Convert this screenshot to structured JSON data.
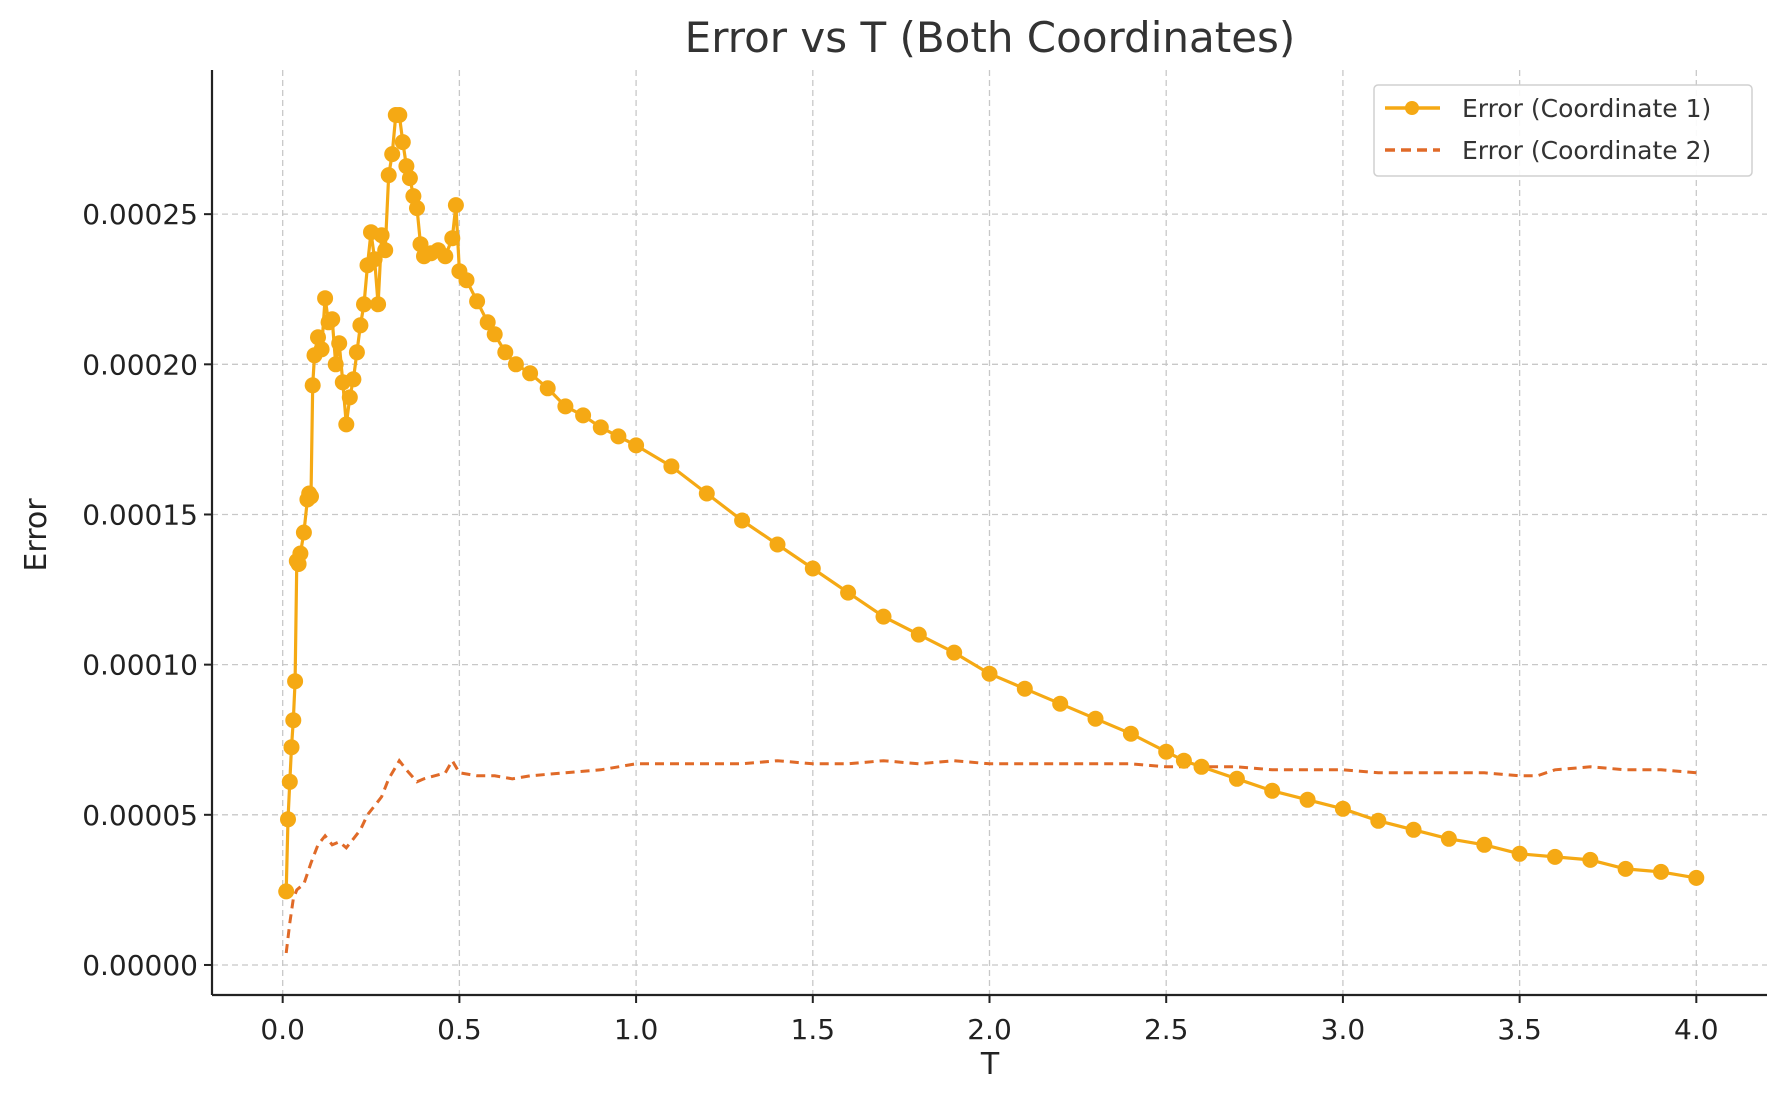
{
  "chart_data": {
    "type": "line",
    "title": "Error vs T (Both Coordinates)",
    "xlabel": "T",
    "ylabel": "Error",
    "xlim": [
      -0.2,
      4.2
    ],
    "ylim": [
      -1e-05,
      0.000298
    ],
    "x_ticks": [
      0.0,
      0.5,
      1.0,
      1.5,
      2.0,
      2.5,
      3.0,
      3.5,
      4.0
    ],
    "x_tick_labels": [
      "0.0",
      "0.5",
      "1.0",
      "1.5",
      "2.0",
      "2.5",
      "3.0",
      "3.5",
      "4.0"
    ],
    "y_ticks": [
      0.0,
      5e-05,
      0.0001,
      0.00015,
      0.0002,
      0.00025
    ],
    "y_tick_labels": [
      "0.00000",
      "0.00005",
      "0.00010",
      "0.00015",
      "0.00020",
      "0.00025"
    ],
    "grid": true,
    "legend_position": "top-right",
    "series": [
      {
        "name": "Error (Coordinate 1)",
        "color": "#F5A914",
        "style": "solid-markers",
        "x": [
          0.01,
          0.015,
          0.02,
          0.025,
          0.03,
          0.035,
          0.04,
          0.045,
          0.05,
          0.06,
          0.07,
          0.075,
          0.08,
          0.085,
          0.09,
          0.1,
          0.11,
          0.12,
          0.13,
          0.14,
          0.15,
          0.16,
          0.17,
          0.18,
          0.19,
          0.2,
          0.21,
          0.22,
          0.23,
          0.24,
          0.25,
          0.26,
          0.27,
          0.28,
          0.29,
          0.3,
          0.31,
          0.32,
          0.33,
          0.34,
          0.35,
          0.36,
          0.37,
          0.38,
          0.39,
          0.4,
          0.42,
          0.44,
          0.46,
          0.48,
          0.49,
          0.5,
          0.52,
          0.55,
          0.58,
          0.6,
          0.63,
          0.66,
          0.7,
          0.75,
          0.8,
          0.85,
          0.9,
          0.95,
          1.0,
          1.1,
          1.2,
          1.3,
          1.4,
          1.5,
          1.6,
          1.7,
          1.8,
          1.9,
          2.0,
          2.1,
          2.2,
          2.3,
          2.4,
          2.5,
          2.55,
          2.6,
          2.7,
          2.8,
          2.9,
          3.0,
          3.1,
          3.2,
          3.3,
          3.4,
          3.5,
          3.6,
          3.7,
          3.8,
          3.9,
          4.0
        ],
        "y": [
          2.45e-05,
          4.85e-05,
          6.1e-05,
          7.25e-05,
          8.15e-05,
          9.45e-05,
          0.0001345,
          0.0001335,
          0.000137,
          0.000144,
          0.000155,
          0.000157,
          0.000156,
          0.000193,
          0.000203,
          0.000209,
          0.000205,
          0.000222,
          0.000214,
          0.000215,
          0.0002,
          0.000207,
          0.000194,
          0.00018,
          0.000189,
          0.000195,
          0.000204,
          0.000213,
          0.00022,
          0.000233,
          0.000244,
          0.000235,
          0.00022,
          0.000243,
          0.000238,
          0.000263,
          0.00027,
          0.000283,
          0.000283,
          0.000274,
          0.000266,
          0.000262,
          0.000256,
          0.000252,
          0.00024,
          0.000236,
          0.000237,
          0.000238,
          0.000236,
          0.000242,
          0.000253,
          0.000231,
          0.000228,
          0.000221,
          0.000214,
          0.00021,
          0.000204,
          0.0002,
          0.000197,
          0.000192,
          0.000186,
          0.000183,
          0.000179,
          0.000176,
          0.000173,
          0.000166,
          0.000157,
          0.000148,
          0.00014,
          0.000132,
          0.000124,
          0.000116,
          0.00011,
          0.000104,
          9.7e-05,
          9.2e-05,
          8.7e-05,
          8.2e-05,
          7.7e-05,
          7.1e-05,
          6.8e-05,
          6.6e-05,
          6.2e-05,
          5.8e-05,
          5.5e-05,
          5.2e-05,
          4.8e-05,
          4.5e-05,
          4.2e-05,
          4e-05,
          3.7e-05,
          3.6e-05,
          3.5e-05,
          3.2e-05,
          3.1e-05,
          2.9e-05
        ]
      },
      {
        "name": "Error (Coordinate 2)",
        "color": "#E06A28",
        "style": "dashed",
        "x": [
          0.01,
          0.02,
          0.03,
          0.04,
          0.06,
          0.08,
          0.1,
          0.12,
          0.14,
          0.16,
          0.18,
          0.2,
          0.22,
          0.24,
          0.26,
          0.28,
          0.3,
          0.32,
          0.33,
          0.35,
          0.38,
          0.4,
          0.43,
          0.46,
          0.48,
          0.5,
          0.55,
          0.6,
          0.65,
          0.7,
          0.8,
          0.9,
          1.0,
          1.1,
          1.2,
          1.3,
          1.4,
          1.5,
          1.6,
          1.7,
          1.8,
          1.9,
          2.0,
          2.1,
          2.2,
          2.3,
          2.4,
          2.5,
          2.6,
          2.7,
          2.8,
          2.9,
          3.0,
          3.1,
          3.2,
          3.3,
          3.4,
          3.5,
          3.55,
          3.6,
          3.7,
          3.8,
          3.9,
          4.0
        ],
        "y": [
          4e-06,
          1.4e-05,
          2.2e-05,
          2.5e-05,
          2.7e-05,
          3.4e-05,
          4e-05,
          4.3e-05,
          4e-05,
          4.1e-05,
          3.9e-05,
          4.2e-05,
          4.5e-05,
          5e-05,
          5.3e-05,
          5.6e-05,
          6.2e-05,
          6.6e-05,
          6.8e-05,
          6.5e-05,
          6.1e-05,
          6.2e-05,
          6.3e-05,
          6.4e-05,
          6.8e-05,
          6.4e-05,
          6.3e-05,
          6.3e-05,
          6.2e-05,
          6.3e-05,
          6.4e-05,
          6.5e-05,
          6.7e-05,
          6.7e-05,
          6.7e-05,
          6.7e-05,
          6.8e-05,
          6.7e-05,
          6.7e-05,
          6.8e-05,
          6.7e-05,
          6.8e-05,
          6.7e-05,
          6.7e-05,
          6.7e-05,
          6.7e-05,
          6.7e-05,
          6.6e-05,
          6.6e-05,
          6.6e-05,
          6.5e-05,
          6.5e-05,
          6.5e-05,
          6.4e-05,
          6.4e-05,
          6.4e-05,
          6.4e-05,
          6.3e-05,
          6.3e-05,
          6.5e-05,
          6.6e-05,
          6.5e-05,
          6.5e-05,
          6.4e-05
        ]
      }
    ]
  }
}
